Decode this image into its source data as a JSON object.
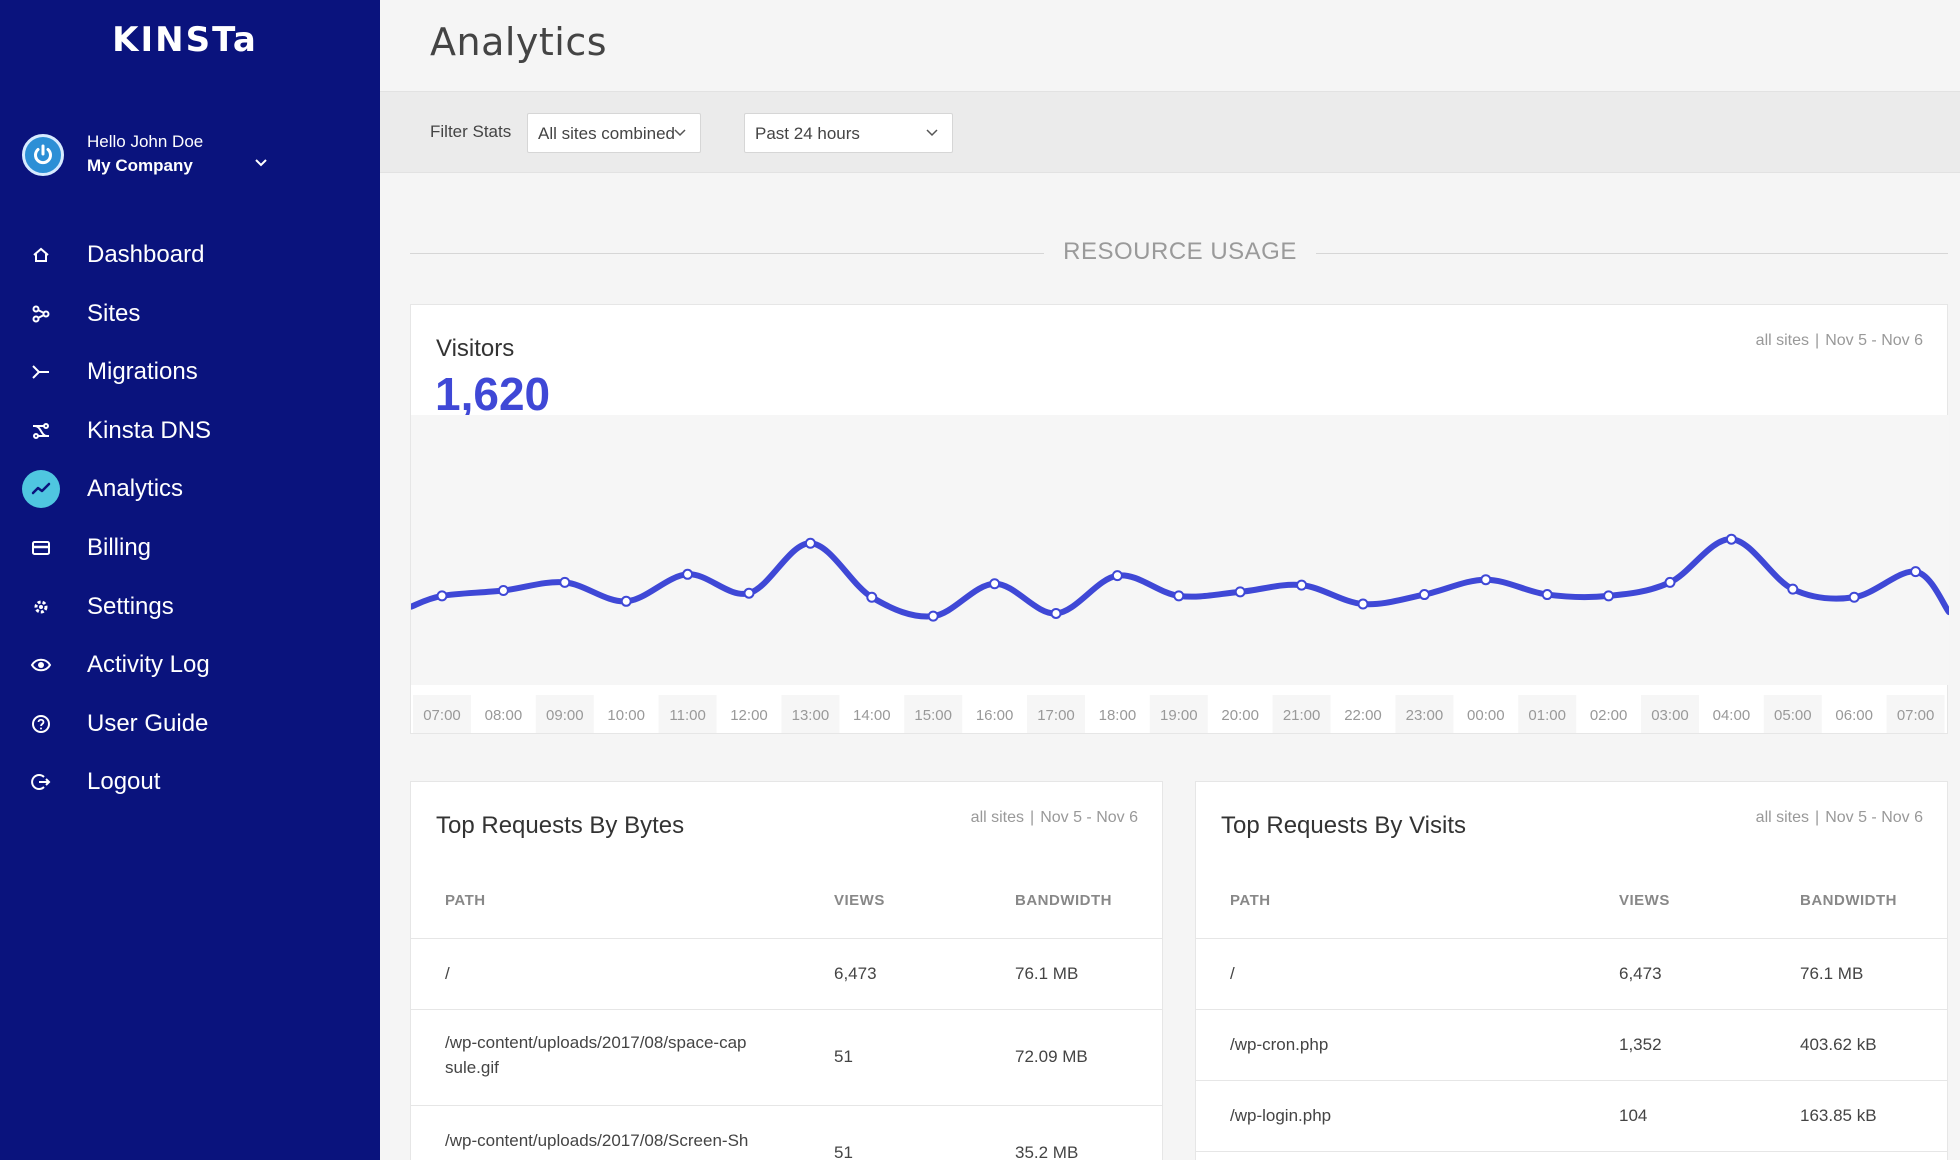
{
  "sidebar": {
    "logo": "KINSTa",
    "user": {
      "hello": "Hello John Doe",
      "company": "My Company"
    },
    "items": [
      {
        "label": "Dashboard",
        "icon": "home-icon",
        "active": false
      },
      {
        "label": "Sites",
        "icon": "sites-icon",
        "active": false
      },
      {
        "label": "Migrations",
        "icon": "migrations-icon",
        "active": false
      },
      {
        "label": "Kinsta DNS",
        "icon": "dns-icon",
        "active": false
      },
      {
        "label": "Analytics",
        "icon": "analytics-icon",
        "active": true
      },
      {
        "label": "Billing",
        "icon": "billing-icon",
        "active": false
      },
      {
        "label": "Settings",
        "icon": "gear-icon",
        "active": false
      },
      {
        "label": "Activity Log",
        "icon": "eye-icon",
        "active": false
      },
      {
        "label": "User Guide",
        "icon": "help-icon",
        "active": false
      },
      {
        "label": "Logout",
        "icon": "logout-icon",
        "active": false
      }
    ]
  },
  "header": {
    "title": "Analytics"
  },
  "filters": {
    "label": "Filter Stats",
    "site_select": "All sites combined",
    "range_select": "Past 24 hours"
  },
  "section": {
    "title": "RESOURCE USAGE"
  },
  "visitors": {
    "title": "Visitors",
    "value": "1,620",
    "meta_scope": "all sites",
    "meta_range": "Nov 5 - Nov 6"
  },
  "chart_data": {
    "type": "line",
    "title": "",
    "x": [
      "07:00",
      "08:00",
      "09:00",
      "10:00",
      "11:00",
      "12:00",
      "13:00",
      "14:00",
      "15:00",
      "16:00",
      "17:00",
      "18:00",
      "19:00",
      "20:00",
      "21:00",
      "22:00",
      "23:00",
      "00:00",
      "01:00",
      "02:00",
      "03:00",
      "04:00",
      "05:00",
      "06:00",
      "07:00"
    ],
    "series": [
      {
        "values": [
          66,
          70,
          76,
          62,
          82,
          68,
          105,
          65,
          51,
          75,
          53,
          81,
          66,
          69,
          74,
          60,
          67,
          78,
          67,
          66,
          76,
          108,
          71,
          65,
          84
        ]
      }
    ],
    "ylim": [
      0,
      200
    ],
    "grid": false,
    "color": "#3f48d6"
  },
  "top_bytes": {
    "title": "Top Requests By Bytes",
    "meta_scope": "all sites",
    "meta_range": "Nov 5 - Nov 6",
    "columns": [
      "PATH",
      "VIEWS",
      "BANDWIDTH"
    ],
    "rows": [
      {
        "path": "/",
        "views": "6,473",
        "bandwidth": "76.1 MB"
      },
      {
        "path": "/wp-content/uploads/2017/08/space-cap\nsule.gif",
        "views": "51",
        "bandwidth": "72.09 MB"
      },
      {
        "path": "/wp-content/uploads/2017/08/Screen-Sh",
        "views": "51",
        "bandwidth": "35.2 MB"
      }
    ]
  },
  "top_visits": {
    "title": "Top Requests By Visits",
    "meta_scope": "all sites",
    "meta_range": "Nov 5 - Nov 6",
    "columns": [
      "PATH",
      "VIEWS",
      "BANDWIDTH"
    ],
    "rows": [
      {
        "path": "/",
        "views": "6,473",
        "bandwidth": "76.1 MB"
      },
      {
        "path": "/wp-cron.php",
        "views": "1,352",
        "bandwidth": "403.62 kB"
      },
      {
        "path": "/wp-login.php",
        "views": "104",
        "bandwidth": "163.85 kB"
      }
    ]
  },
  "colors": {
    "sidebar": "#0a137d",
    "accent": "#3f48d6",
    "active_icon": "#4fc6e0"
  }
}
